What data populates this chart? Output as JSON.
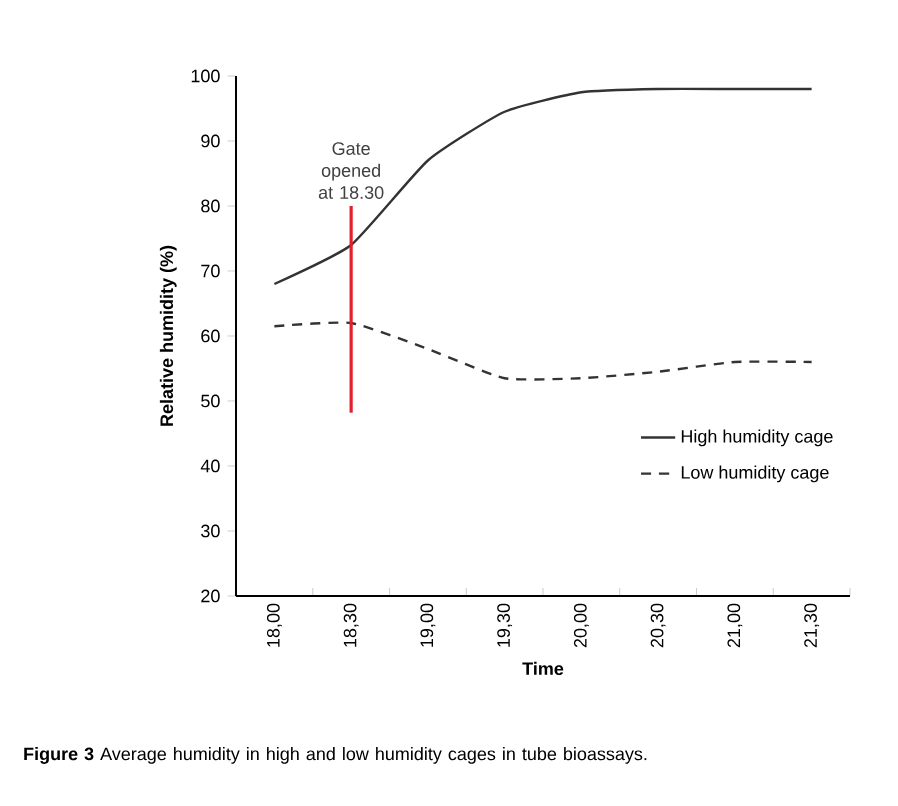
{
  "chart_data": {
    "type": "line",
    "xlabel": "Time",
    "ylabel": "Relative humidity (%)",
    "categories": [
      "18,00",
      "18,30",
      "19,00",
      "19,30",
      "20,00",
      "20,30",
      "21,00",
      "21,30"
    ],
    "series": [
      {
        "name": "High humidity cage",
        "color": "#333333",
        "line_style": "solid",
        "values": [
          68,
          74,
          87,
          94.5,
          97.5,
          98,
          98,
          98
        ]
      },
      {
        "name": "Low humidity cage",
        "color": "#333333",
        "line_style": "dashed",
        "values": [
          61.5,
          62,
          58,
          53.5,
          53.5,
          54.5,
          56,
          56
        ]
      }
    ],
    "ylim": [
      20,
      100
    ],
    "yticks": [
      20,
      30,
      40,
      50,
      60,
      70,
      80,
      90,
      100
    ],
    "legend": "right",
    "grid": false,
    "marker": "none",
    "ref_lines": [
      {
        "axis": "x",
        "value": "18,30",
        "color": "#e0202a"
      }
    ],
    "annotations": [
      {
        "text": "Gate opened at 18.30",
        "x": "18,30",
        "y": 80
      },
      "**Figure 3** Average humidity in high and low humidity cages in tube bioassays."
    ]
  }
}
